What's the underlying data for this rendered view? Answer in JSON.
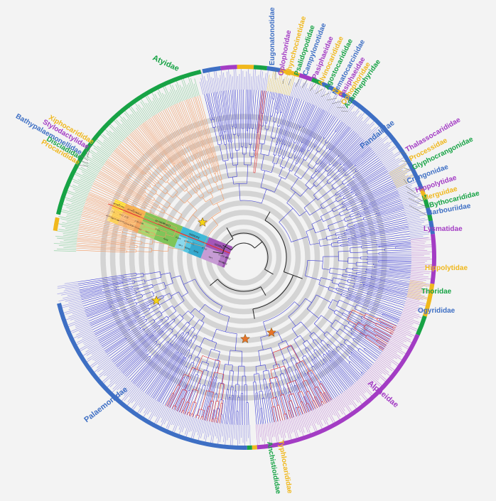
{
  "colors": {
    "background": "#f3f3f3",
    "ring_gray": "#d4d4d4",
    "branch_orange": "#f39a63",
    "branch_blue": "#3d3dd6",
    "branch_red": "#e03434",
    "branch_black": "#222222",
    "blue": "#3e6fc4",
    "green": "#17a345",
    "purple": "#a33cc4",
    "yellow": "#f0b81d",
    "star_yellow": "#f5d516",
    "star_orange": "#e8732a"
  },
  "families": [
    {
      "name": "Atyidae",
      "color": "green"
    },
    {
      "name": "Xiphocarididae",
      "color": "yellow"
    },
    {
      "name": "Stylodactylidae",
      "color": "purple"
    },
    {
      "name": "Bathypalaemonellidae",
      "color": "blue"
    },
    {
      "name": "Disciadidae",
      "color": "green"
    },
    {
      "name": "Procarididae",
      "color": "yellow"
    },
    {
      "name": "Eugonatonotidae",
      "color": "blue"
    },
    {
      "name": "Oplophoridae",
      "color": "purple"
    },
    {
      "name": "Rhynchocinetidae",
      "color": "yellow"
    },
    {
      "name": "Psalidopodidae",
      "color": "green"
    },
    {
      "name": "Campylonotidae",
      "color": "blue"
    },
    {
      "name": "Pasiphaeidae",
      "color": "purple"
    },
    {
      "name": "Alvinocarididae",
      "color": "yellow"
    },
    {
      "name": "Agostocarididae",
      "color": "green"
    },
    {
      "name": "Nematocarcinidae",
      "color": "blue"
    },
    {
      "name": "Pasiphaeidae",
      "color": "purple"
    },
    {
      "name": "Ophophoridae",
      "color": "yellow"
    },
    {
      "name": "Acanthephyridae",
      "color": "green"
    },
    {
      "name": "Pandalidae",
      "color": "blue"
    },
    {
      "name": "Thalassocarididae",
      "color": "purple"
    },
    {
      "name": "Processidae",
      "color": "yellow"
    },
    {
      "name": "Glyphocrangonidae",
      "color": "green"
    },
    {
      "name": "Crangonidae",
      "color": "blue"
    },
    {
      "name": "Hippolytidae",
      "color": "purple"
    },
    {
      "name": "Merguidae",
      "color": "yellow"
    },
    {
      "name": "Bythocarididae",
      "color": "green"
    },
    {
      "name": "Barbouriidae",
      "color": "blue"
    },
    {
      "name": "Lysmatidae",
      "color": "purple"
    },
    {
      "name": "Hippolytidae",
      "color": "yellow"
    },
    {
      "name": "Thoridae",
      "color": "green"
    },
    {
      "name": "Ogyrididae",
      "color": "blue"
    },
    {
      "name": "Alpheidae",
      "color": "purple"
    },
    {
      "name": "Typhlocarididae",
      "color": "yellow"
    },
    {
      "name": "Anchistioididae",
      "color": "green"
    },
    {
      "name": "Palaemonidae",
      "color": "blue"
    }
  ],
  "timescale": {
    "periods": [
      {
        "label": "Neogene",
        "color": "#fff23a"
      },
      {
        "label": "Paleogene",
        "color": "#f6b84e"
      },
      {
        "label": "Cretaceous",
        "color": "#86c456"
      },
      {
        "label": "Jurassic",
        "color": "#3fb8d6"
      },
      {
        "label": "Triassic",
        "color": "#a356b8"
      }
    ],
    "epochs": [
      {
        "label": "Pliocene",
        "color": "#fff8a0"
      },
      {
        "label": "Miocene",
        "color": "#ffe85a"
      },
      {
        "label": "Oligocene",
        "color": "#fbd28e"
      },
      {
        "label": "Eocene",
        "color": "#f9c47b"
      },
      {
        "label": "Paleocene",
        "color": "#f4ab63"
      },
      {
        "label": "Late",
        "color": "#a8d870"
      },
      {
        "label": "Early",
        "color": "#7fc55a"
      },
      {
        "label": "Late",
        "color": "#8ad8ec"
      },
      {
        "label": "Middle",
        "color": "#57c7e3"
      },
      {
        "label": "Early",
        "color": "#36a9cf"
      },
      {
        "label": "Late",
        "color": "#c79cd4"
      },
      {
        "label": "Middle",
        "color": "#b57ac6"
      },
      {
        "label": "Early",
        "color": "#9e56b3"
      }
    ],
    "ages": [
      "5.3",
      "23.0",
      "33.9",
      "56.0",
      "66.0",
      "100.5",
      "145.0",
      "163.5",
      "174.1",
      "201.3",
      "237.0",
      "247.2",
      "251.9"
    ]
  }
}
